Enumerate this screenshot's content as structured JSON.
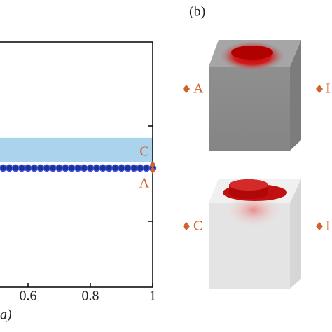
{
  "chart_data": {
    "type": "line",
    "x_label": "a)",
    "xlim": [
      0.5,
      1
    ],
    "xticks": [
      0.6,
      0.8,
      1
    ],
    "ylim": [
      0,
      1
    ],
    "band": [
      0.509,
      0.609
    ],
    "band_color": "#aad4ee",
    "series": [
      {
        "color": "#1f2f9c",
        "x": [
          0.5,
          0.52,
          0.54,
          0.56,
          0.58,
          0.6,
          0.62,
          0.64,
          0.66,
          0.68,
          0.7,
          0.72,
          0.74,
          0.76,
          0.78,
          0.8,
          0.82,
          0.84,
          0.86,
          0.88,
          0.9,
          0.92,
          0.94,
          0.96,
          0.98,
          1
        ],
        "values": [
          0.486,
          0.486,
          0.486,
          0.486,
          0.486,
          0.486,
          0.486,
          0.486,
          0.486,
          0.486,
          0.486,
          0.486,
          0.486,
          0.486,
          0.486,
          0.486,
          0.486,
          0.486,
          0.486,
          0.486,
          0.486,
          0.486,
          0.486,
          0.486,
          0.486,
          0.486
        ]
      }
    ],
    "points": [
      {
        "label": "C",
        "x": 1,
        "y": 0.5
      },
      {
        "label": "A",
        "x": 1,
        "y": 0.477
      }
    ]
  },
  "panel_b": {
    "label": "(b)",
    "markers": [
      "A",
      "I",
      "C",
      "I"
    ]
  }
}
